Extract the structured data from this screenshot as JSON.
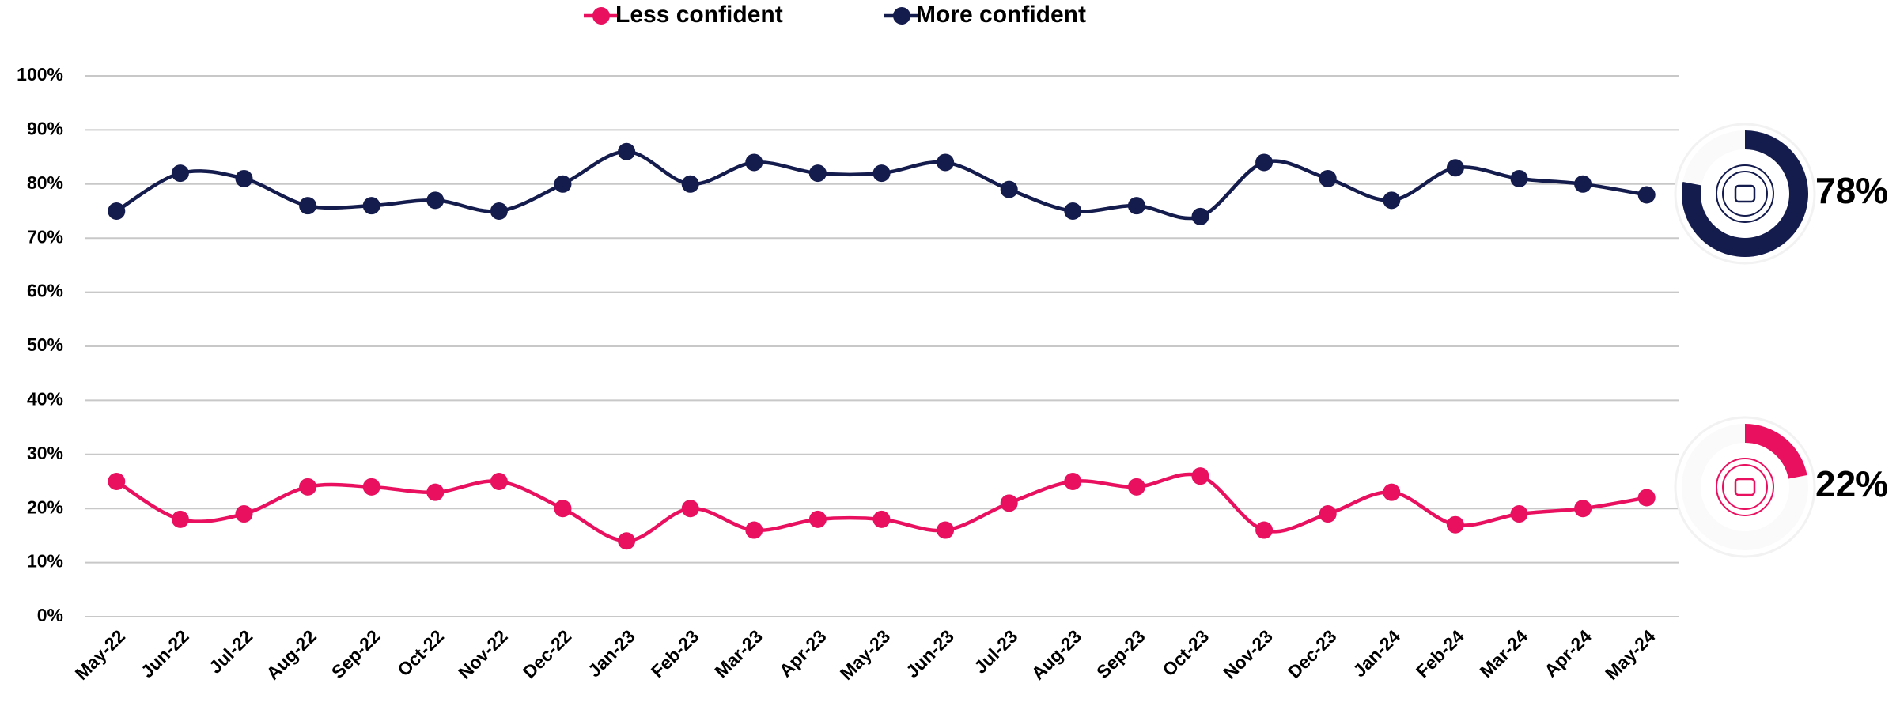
{
  "chart_data": {
    "type": "line",
    "categories": [
      "May-22",
      "Jun-22",
      "Jul-22",
      "Aug-22",
      "Sep-22",
      "Oct-22",
      "Nov-22",
      "Dec-22",
      "Jan-23",
      "Feb-23",
      "Mar-23",
      "Apr-23",
      "May-23",
      "Jun-23",
      "Jul-23",
      "Aug-23",
      "Sep-23",
      "Oct-23",
      "Nov-23",
      "Dec-23",
      "Jan-24",
      "Feb-24",
      "Mar-24",
      "Apr-24",
      "May-24"
    ],
    "series": [
      {
        "name": "Less confident",
        "color": "#e8105f",
        "values": [
          25,
          18,
          19,
          24,
          24,
          23,
          25,
          20,
          14,
          20,
          16,
          18,
          18,
          16,
          21,
          25,
          24,
          26,
          16,
          19,
          23,
          17,
          19,
          20,
          22
        ]
      },
      {
        "name": "More confident",
        "color": "#141b4d",
        "values": [
          75,
          82,
          81,
          76,
          76,
          77,
          75,
          80,
          86,
          80,
          84,
          82,
          82,
          84,
          79,
          75,
          76,
          74,
          84,
          81,
          77,
          83,
          81,
          80,
          78
        ]
      }
    ],
    "ylim": [
      0,
      100
    ],
    "yticks": [
      {
        "value": 0,
        "label": "0%"
      },
      {
        "value": 10,
        "label": "10%"
      },
      {
        "value": 20,
        "label": "20%"
      },
      {
        "value": 30,
        "label": "30%"
      },
      {
        "value": 40,
        "label": "40%"
      },
      {
        "value": 50,
        "label": "50%"
      },
      {
        "value": 60,
        "label": "60%"
      },
      {
        "value": 70,
        "label": "70%"
      },
      {
        "value": 80,
        "label": "80%"
      },
      {
        "value": 90,
        "label": "90%"
      },
      {
        "value": 100,
        "label": "100%"
      }
    ],
    "grid": true,
    "legend": "top",
    "callouts": [
      {
        "label": "78%",
        "value": 78,
        "color": "#141b4d"
      },
      {
        "label": "22%",
        "value": 22,
        "color": "#e8105f"
      }
    ]
  }
}
